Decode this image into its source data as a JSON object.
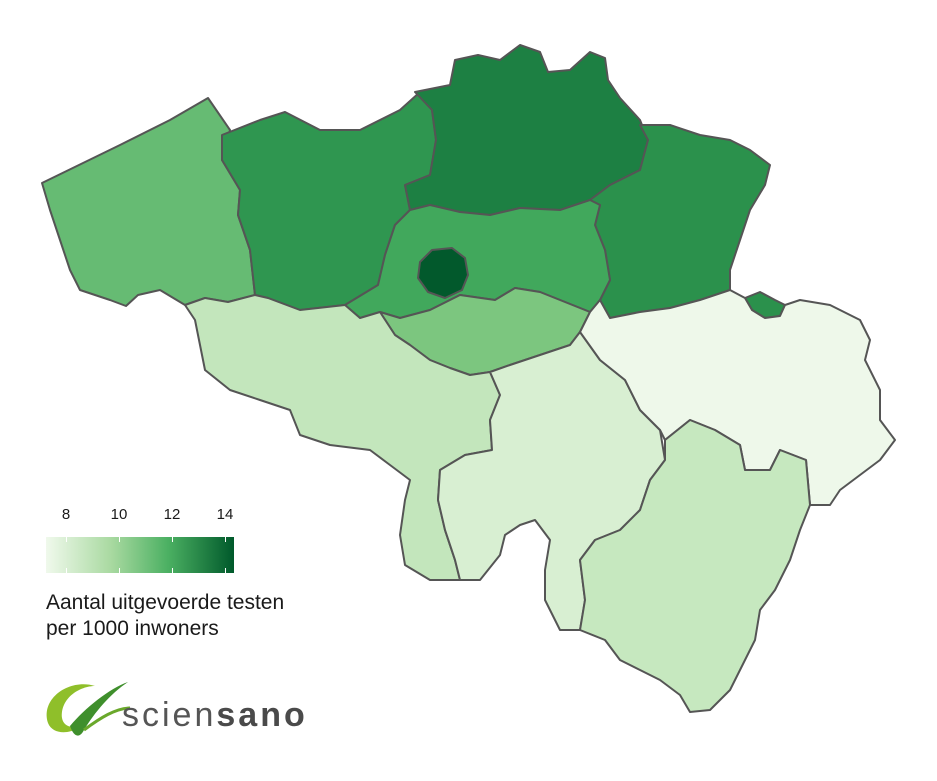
{
  "map": {
    "regions": [
      {
        "id": "west-vlaanderen",
        "name": "West-Vlaanderen",
        "color": "#66bb73"
      },
      {
        "id": "oost-vlaanderen",
        "name": "Oost-Vlaanderen",
        "color": "#2f9650"
      },
      {
        "id": "antwerpen",
        "name": "Antwerpen",
        "color": "#1d8043"
      },
      {
        "id": "limburg",
        "name": "Limburg",
        "color": "#2b914c"
      },
      {
        "id": "vlaams-brabant",
        "name": "Vlaams-Brabant",
        "color": "#41a85c"
      },
      {
        "id": "brussel",
        "name": "Brussel",
        "color": "#02592c"
      },
      {
        "id": "brabant-wallon",
        "name": "Brabant wallon",
        "color": "#7cc67f"
      },
      {
        "id": "hainaut",
        "name": "Hainaut",
        "color": "#c3e6bc"
      },
      {
        "id": "namur",
        "name": "Namur",
        "color": "#d8efd2"
      },
      {
        "id": "liege",
        "name": "Liège",
        "color": "#eef8ea"
      },
      {
        "id": "luxembourg",
        "name": "Luxembourg",
        "color": "#c6e8bf"
      }
    ]
  },
  "legend": {
    "ticks": [
      "8",
      "10",
      "12",
      "14"
    ],
    "title_line1": "Aantal uitgevoerde testen",
    "title_line2": "per 1000 inwoners",
    "color_low": "#f0f9ec",
    "color_high": "#00592b"
  },
  "logo": {
    "text_light": "scien",
    "text_bold": "sano"
  }
}
